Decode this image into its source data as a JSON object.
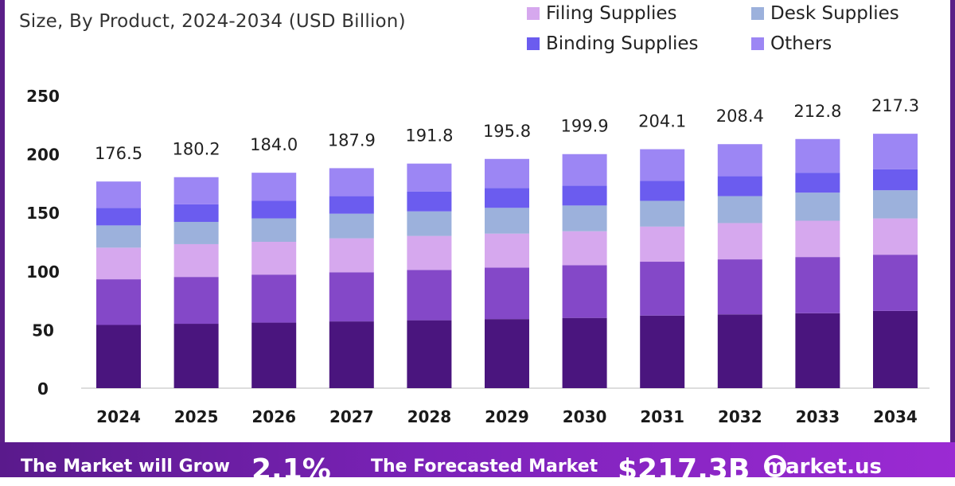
{
  "header": {
    "subtitle": "Size, By Product, 2024-2034 (USD Billion)"
  },
  "legend": [
    {
      "label": "Filing Supplies",
      "color": "#d6a8ee"
    },
    {
      "label": "Desk Supplies",
      "color": "#9cb1dc"
    },
    {
      "label": "Binding Supplies",
      "color": "#6b5cef"
    },
    {
      "label": "Others",
      "color": "#9c86f4"
    }
  ],
  "footer": {
    "text1": "The Market will Grow",
    "value1": "2.1%",
    "text2": "The Forecasted Market",
    "value2": "$217.3B",
    "brand": "market.us"
  },
  "chart_data": {
    "type": "bar",
    "stacked": true,
    "categories": [
      "2024",
      "2025",
      "2026",
      "2027",
      "2028",
      "2029",
      "2030",
      "2031",
      "2032",
      "2033",
      "2034"
    ],
    "totals": [
      176.5,
      180.2,
      184.0,
      187.9,
      191.8,
      195.8,
      199.9,
      204.1,
      208.4,
      212.8,
      217.3
    ],
    "total_labels": [
      "176.5",
      "180.2",
      "184.0",
      "187.9",
      "191.8",
      "195.8",
      "199.9",
      "204.1",
      "208.4",
      "212.8",
      "217.3"
    ],
    "yticks": [
      "0",
      "50",
      "100",
      "150",
      "200",
      "250"
    ],
    "ylim": [
      0,
      250
    ],
    "grid": false,
    "legend_position": "top-right",
    "series": [
      {
        "color": "#4a157e",
        "values": [
          54,
          55,
          56,
          57,
          58,
          59,
          60,
          62,
          63,
          64,
          66
        ]
      },
      {
        "color": "#8448c8",
        "values": [
          39,
          40,
          41,
          42,
          43,
          44,
          45,
          46,
          47,
          48,
          48
        ]
      },
      {
        "name": "Filing Supplies",
        "color": "#d6a8ee",
        "values": [
          27,
          28,
          28,
          29,
          29,
          29,
          29,
          30,
          31,
          31,
          31
        ]
      },
      {
        "name": "Desk Supplies",
        "color": "#9cb1dc",
        "values": [
          19,
          19,
          20,
          21,
          21,
          22,
          22,
          22,
          23,
          24,
          24
        ]
      },
      {
        "name": "Binding Supplies",
        "color": "#6b5cef",
        "values": [
          15,
          15,
          15,
          15,
          17,
          17,
          17,
          17,
          17,
          17,
          18
        ]
      },
      {
        "name": "Others",
        "color": "#9c86f4",
        "values": [
          22.5,
          23.2,
          24.0,
          23.9,
          23.8,
          24.8,
          26.9,
          27.1,
          27.4,
          28.8,
          30.3
        ]
      }
    ]
  }
}
